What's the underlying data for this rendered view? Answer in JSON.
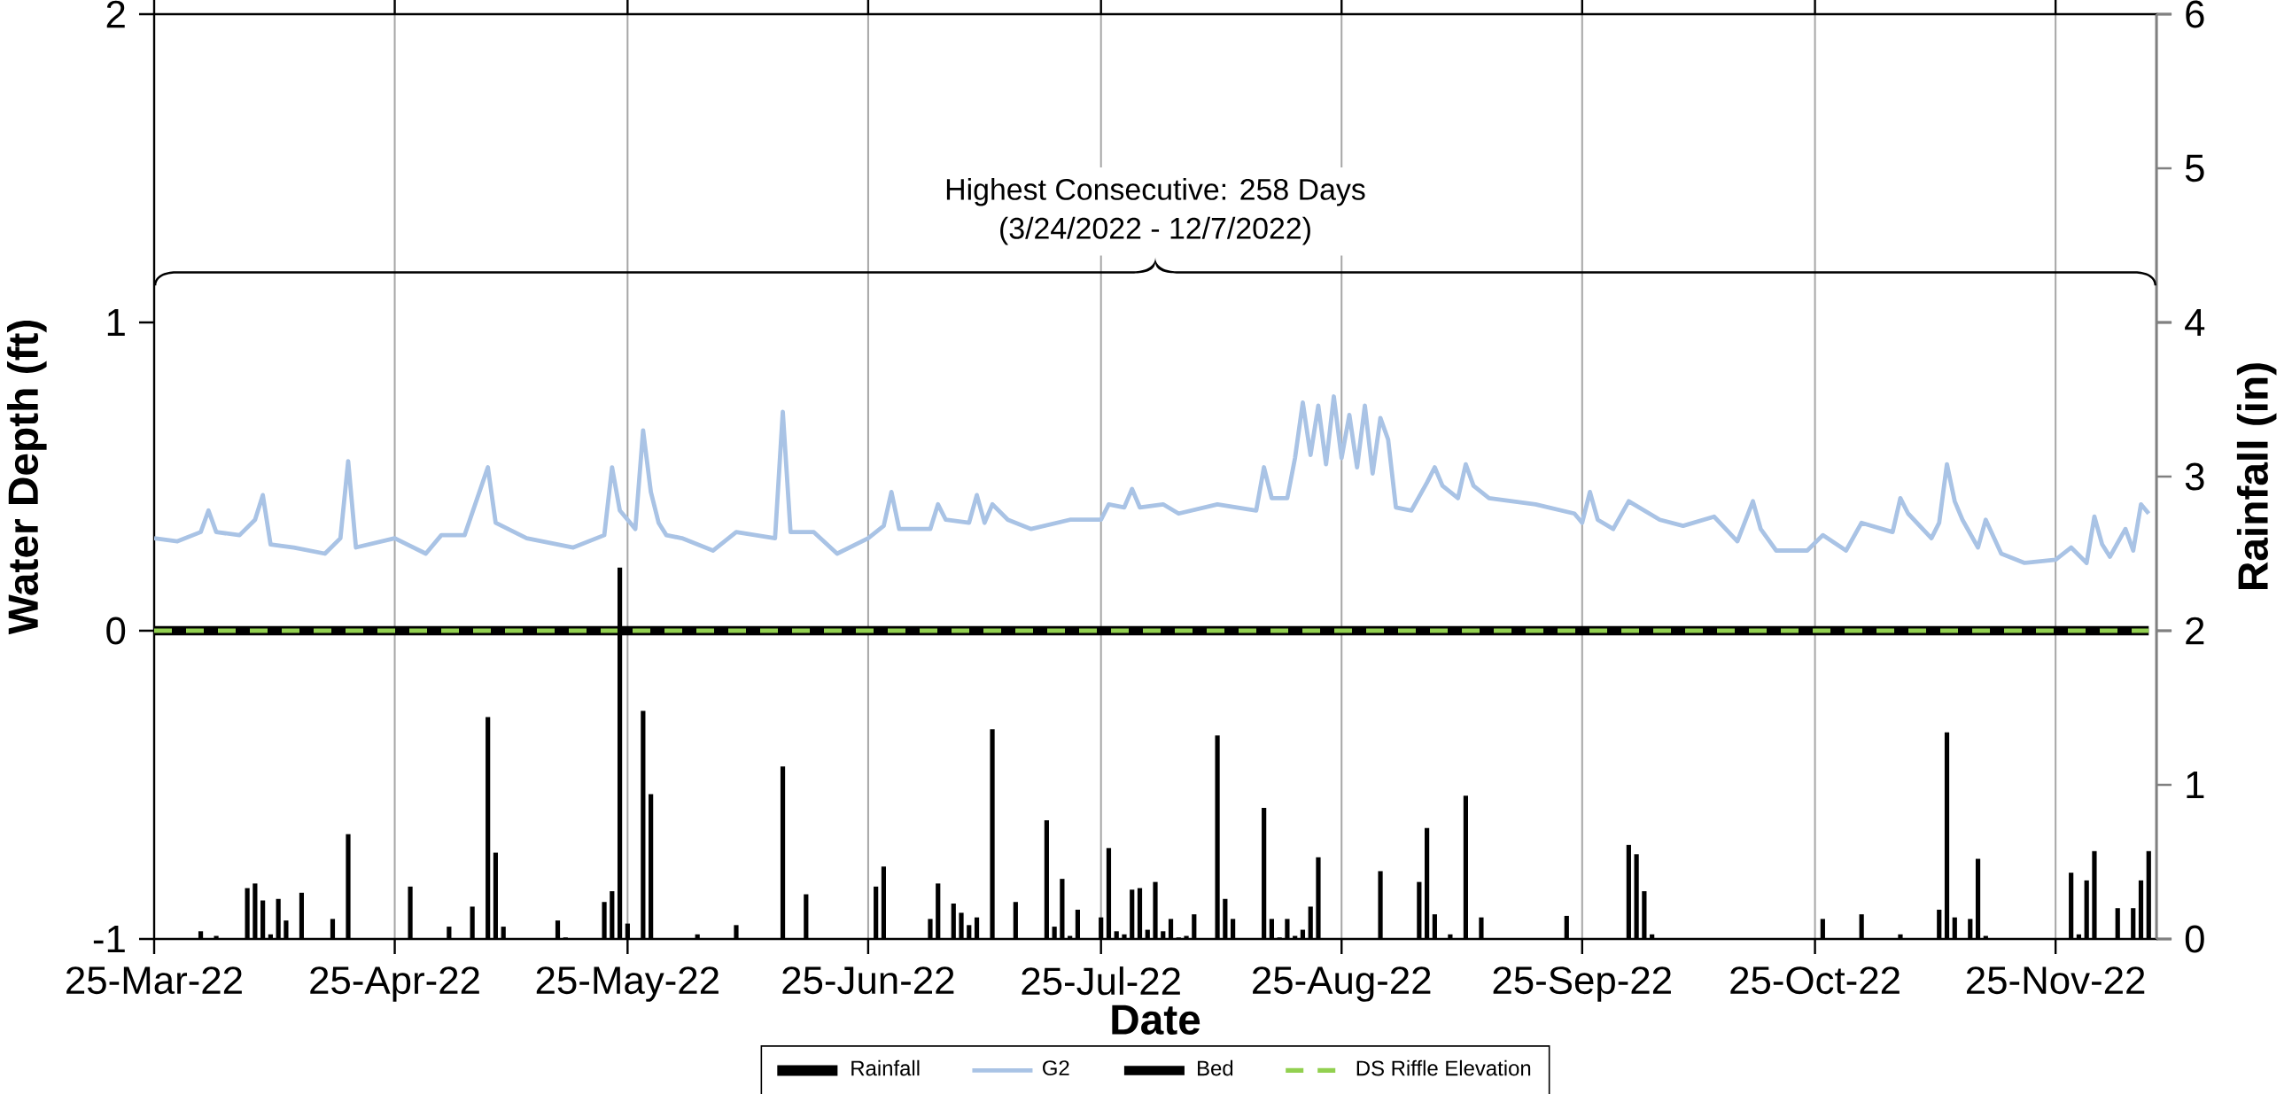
{
  "chart_data": {
    "type": "line",
    "xlabel": "Date",
    "ylabel": "Water Depth (ft)",
    "y2label": "Rainfall (in)",
    "annotations": [
      "Highest Consecutive: 258 Days",
      "(3/24/2022 - 12/7/2022)"
    ],
    "xlim": [
      "2022-03-25",
      "2022-12-08"
    ],
    "xticks": [
      {
        "value": "2022-03-25",
        "label": "25-Mar-22"
      },
      {
        "value": "2022-04-25",
        "label": "25-Apr-22"
      },
      {
        "value": "2022-05-25",
        "label": "25-May-22"
      },
      {
        "value": "2022-06-25",
        "label": "25-Jun-22"
      },
      {
        "value": "2022-07-25",
        "label": "25-Jul-22"
      },
      {
        "value": "2022-08-25",
        "label": "25-Aug-22"
      },
      {
        "value": "2022-09-25",
        "label": "25-Sep-22"
      },
      {
        "value": "2022-10-25",
        "label": "25-Oct-22"
      },
      {
        "value": "2022-11-25",
        "label": "25-Nov-22"
      }
    ],
    "ylim": [
      -1,
      2
    ],
    "yticks": [
      -1,
      0,
      1,
      2
    ],
    "y2lim": [
      0,
      6
    ],
    "y2ticks": [
      0,
      1,
      2,
      3,
      4,
      5,
      6
    ],
    "grid": "x",
    "legend": "bottom",
    "series": [
      {
        "name": "Rainfall",
        "type": "bar",
        "axis": "y2",
        "color": "#000000",
        "x": [
          "2022-03-31",
          "2022-04-02",
          "2022-04-06",
          "2022-04-07",
          "2022-04-08",
          "2022-04-09",
          "2022-04-10",
          "2022-04-11",
          "2022-04-13",
          "2022-04-17",
          "2022-04-19",
          "2022-04-27",
          "2022-05-02",
          "2022-05-05",
          "2022-05-07",
          "2022-05-08",
          "2022-05-09",
          "2022-05-16",
          "2022-05-17",
          "2022-05-22",
          "2022-05-23",
          "2022-05-24",
          "2022-05-25",
          "2022-05-27",
          "2022-05-28",
          "2022-06-03",
          "2022-06-08",
          "2022-06-14",
          "2022-06-17",
          "2022-06-26",
          "2022-06-27",
          "2022-07-03",
          "2022-07-04",
          "2022-07-06",
          "2022-07-07",
          "2022-07-08",
          "2022-07-09",
          "2022-07-11",
          "2022-07-14",
          "2022-07-18",
          "2022-07-19",
          "2022-07-20",
          "2022-07-21",
          "2022-07-22",
          "2022-07-25",
          "2022-07-26",
          "2022-07-27",
          "2022-07-28",
          "2022-07-29",
          "2022-07-30",
          "2022-07-31",
          "2022-08-01",
          "2022-08-02",
          "2022-08-03",
          "2022-08-04",
          "2022-08-05",
          "2022-08-06",
          "2022-08-09",
          "2022-08-10",
          "2022-08-11",
          "2022-08-15",
          "2022-08-16",
          "2022-08-17",
          "2022-08-18",
          "2022-08-19",
          "2022-08-20",
          "2022-08-21",
          "2022-08-22",
          "2022-08-30",
          "2022-09-04",
          "2022-09-05",
          "2022-09-06",
          "2022-09-08",
          "2022-09-10",
          "2022-09-12",
          "2022-09-23",
          "2022-10-01",
          "2022-10-02",
          "2022-10-03",
          "2022-10-04",
          "2022-10-26",
          "2022-10-31",
          "2022-11-05",
          "2022-11-10",
          "2022-11-11",
          "2022-11-12",
          "2022-11-14",
          "2022-11-15",
          "2022-11-16",
          "2022-11-27",
          "2022-11-28",
          "2022-11-29",
          "2022-11-30",
          "2022-12-03",
          "2022-12-05",
          "2022-12-06",
          "2022-12-07"
        ],
        "values": [
          0.05,
          0.02,
          0.33,
          0.36,
          0.25,
          0.03,
          0.26,
          0.12,
          0.3,
          0.13,
          0.68,
          0.34,
          0.08,
          0.21,
          1.44,
          0.56,
          0.08,
          0.12,
          0.01,
          0.24,
          0.31,
          2.41,
          0.1,
          1.48,
          0.94,
          0.03,
          0.09,
          1.12,
          0.29,
          0.34,
          0.47,
          0.13,
          0.36,
          0.23,
          0.17,
          0.09,
          0.14,
          1.36,
          0.24,
          0.77,
          0.08,
          0.39,
          0.02,
          0.19,
          0.14,
          0.59,
          0.05,
          0.03,
          0.32,
          0.33,
          0.06,
          0.37,
          0.05,
          0.13,
          0.01,
          0.02,
          0.16,
          1.32,
          0.26,
          0.13,
          0.85,
          0.13,
          0.01,
          0.13,
          0.02,
          0.06,
          0.21,
          0.53,
          0.44,
          0.37,
          0.72,
          0.16,
          0.03,
          0.93,
          0.14,
          0.15,
          0.61,
          0.55,
          0.31,
          0.03,
          0.13,
          0.16,
          0.03,
          0.19,
          1.34,
          0.14,
          0.13,
          0.52,
          0.02,
          0.43,
          0.03,
          0.38,
          0.57,
          0.2,
          0.2,
          0.38,
          0.57
        ]
      },
      {
        "name": "G2",
        "color": "#a9c3e5",
        "line_style": "solid",
        "x": [
          "2022-03-25",
          "2022-03-28",
          "2022-03-31",
          "2022-04-01",
          "2022-04-02",
          "2022-04-05",
          "2022-04-07",
          "2022-04-08",
          "2022-04-09",
          "2022-04-12",
          "2022-04-16",
          "2022-04-18",
          "2022-04-19",
          "2022-04-20",
          "2022-04-25",
          "2022-04-29",
          "2022-05-01",
          "2022-05-04",
          "2022-05-07",
          "2022-05-08",
          "2022-05-12",
          "2022-05-18",
          "2022-05-22",
          "2022-05-23",
          "2022-05-24",
          "2022-05-26",
          "2022-05-27",
          "2022-05-28",
          "2022-05-29",
          "2022-05-30",
          "2022-06-01",
          "2022-06-05",
          "2022-06-08",
          "2022-06-13",
          "2022-06-14",
          "2022-06-15",
          "2022-06-18",
          "2022-06-21",
          "2022-06-25",
          "2022-06-27",
          "2022-06-28",
          "2022-06-29",
          "2022-07-03",
          "2022-07-04",
          "2022-07-05",
          "2022-07-08",
          "2022-07-09",
          "2022-07-10",
          "2022-07-11",
          "2022-07-13",
          "2022-07-16",
          "2022-07-21",
          "2022-07-25",
          "2022-07-26",
          "2022-07-28",
          "2022-07-29",
          "2022-07-30",
          "2022-08-02",
          "2022-08-04",
          "2022-08-09",
          "2022-08-14",
          "2022-08-15",
          "2022-08-16",
          "2022-08-18",
          "2022-08-19",
          "2022-08-20",
          "2022-08-21",
          "2022-08-22",
          "2022-08-23",
          "2022-08-24",
          "2022-08-25",
          "2022-08-26",
          "2022-08-27",
          "2022-08-28",
          "2022-08-29",
          "2022-08-30",
          "2022-08-31",
          "2022-09-01",
          "2022-09-03",
          "2022-09-05",
          "2022-09-06",
          "2022-09-07",
          "2022-09-09",
          "2022-09-10",
          "2022-09-11",
          "2022-09-13",
          "2022-09-19",
          "2022-09-24",
          "2022-09-25",
          "2022-09-26",
          "2022-09-27",
          "2022-09-29",
          "2022-10-01",
          "2022-10-05",
          "2022-10-08",
          "2022-10-12",
          "2022-10-15",
          "2022-10-17",
          "2022-10-18",
          "2022-10-20",
          "2022-10-24",
          "2022-10-26",
          "2022-10-29",
          "2022-10-31",
          "2022-11-04",
          "2022-11-05",
          "2022-11-06",
          "2022-11-09",
          "2022-11-10",
          "2022-11-11",
          "2022-11-12",
          "2022-11-13",
          "2022-11-15",
          "2022-11-16",
          "2022-11-18",
          "2022-11-21",
          "2022-11-25",
          "2022-11-27",
          "2022-11-29",
          "2022-11-30",
          "2022-12-01",
          "2022-12-02",
          "2022-12-04",
          "2022-12-05",
          "2022-12-06",
          "2022-12-07"
        ],
        "values": [
          0.3,
          0.29,
          0.32,
          0.39,
          0.32,
          0.31,
          0.36,
          0.44,
          0.28,
          0.27,
          0.25,
          0.3,
          0.55,
          0.27,
          0.3,
          0.25,
          0.31,
          0.31,
          0.53,
          0.35,
          0.3,
          0.27,
          0.31,
          0.53,
          0.39,
          0.33,
          0.65,
          0.45,
          0.35,
          0.31,
          0.3,
          0.26,
          0.32,
          0.3,
          0.71,
          0.32,
          0.32,
          0.25,
          0.3,
          0.34,
          0.45,
          0.33,
          0.33,
          0.41,
          0.36,
          0.35,
          0.44,
          0.35,
          0.41,
          0.36,
          0.33,
          0.36,
          0.36,
          0.41,
          0.4,
          0.46,
          0.4,
          0.41,
          0.38,
          0.41,
          0.39,
          0.53,
          0.43,
          0.43,
          0.56,
          0.74,
          0.57,
          0.73,
          0.54,
          0.76,
          0.56,
          0.7,
          0.53,
          0.73,
          0.51,
          0.69,
          0.62,
          0.4,
          0.39,
          0.48,
          0.53,
          0.47,
          0.43,
          0.54,
          0.47,
          0.43,
          0.41,
          0.38,
          0.35,
          0.45,
          0.36,
          0.33,
          0.42,
          0.36,
          0.34,
          0.37,
          0.29,
          0.42,
          0.33,
          0.26,
          0.26,
          0.31,
          0.26,
          0.35,
          0.32,
          0.43,
          0.38,
          0.3,
          0.35,
          0.54,
          0.42,
          0.36,
          0.27,
          0.36,
          0.25,
          0.22,
          0.23,
          0.27,
          0.22,
          0.37,
          0.28,
          0.24,
          0.33,
          0.26,
          0.41,
          0.38
        ]
      },
      {
        "name": "Bed",
        "color": "#000000",
        "line_style": "solid",
        "x": [
          "2022-03-25",
          "2022-12-07"
        ],
        "values": [
          0,
          0
        ]
      },
      {
        "name": "DS Riffle Elevation",
        "color": "#92d050",
        "line_style": "dashed",
        "x": [
          "2022-03-25",
          "2022-12-07"
        ],
        "values": [
          0,
          0
        ]
      }
    ]
  }
}
